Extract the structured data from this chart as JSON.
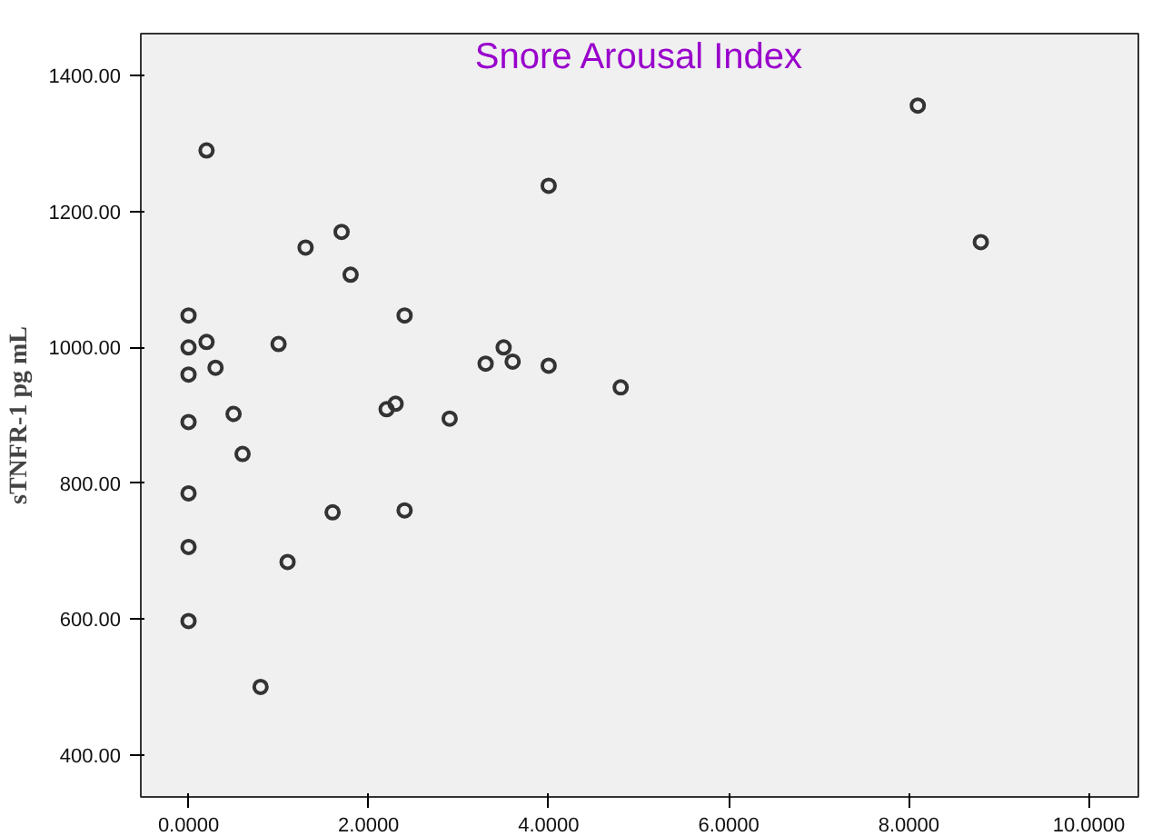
{
  "chart_data": {
    "type": "scatter",
    "title": "Snore Arousal Index",
    "ylabel": "sTNFR-1 pg mL",
    "x": [
      0.2,
      0,
      0,
      0.2,
      0.3,
      0,
      0,
      0.5,
      0.6,
      0,
      0,
      0,
      0.8,
      1.0,
      1.3,
      1.7,
      1.8,
      1.6,
      1.1,
      2.4,
      2.2,
      2.3,
      2.4,
      2.9,
      3.3,
      3.5,
      3.6,
      4.0,
      4.0,
      4.8,
      8.1,
      8.8
    ],
    "series": [
      {
        "color": "#333333",
        "values": [
          1290,
          1047,
          1000,
          1008,
          970,
          960,
          890,
          902,
          843,
          785,
          706,
          597,
          500,
          1005,
          1147,
          1170,
          1107,
          757,
          684,
          1047,
          909,
          917,
          760,
          895,
          976,
          1000,
          979,
          973,
          1238,
          941,
          1356,
          1155
        ]
      }
    ],
    "xlim": [
      -0.53,
      10.55
    ],
    "ylim": [
      338,
      1462
    ],
    "xticks": [
      {
        "value": 0,
        "label": "0.0000"
      },
      {
        "value": 2,
        "label": "2.0000"
      },
      {
        "value": 4,
        "label": "4.0000"
      },
      {
        "value": 6,
        "label": "6.0000"
      },
      {
        "value": 8,
        "label": "8.0000"
      },
      {
        "value": 10,
        "label": "10.0000"
      }
    ],
    "yticks": [
      {
        "value": 400,
        "label": "400.00"
      },
      {
        "value": 600,
        "label": "600.00"
      },
      {
        "value": 800,
        "label": "800.00"
      },
      {
        "value": 1000,
        "label": "1000.00"
      },
      {
        "value": 1200,
        "label": "1200.00"
      },
      {
        "value": 1400,
        "label": "1400.00"
      }
    ],
    "marker": "circle",
    "grid": false
  }
}
